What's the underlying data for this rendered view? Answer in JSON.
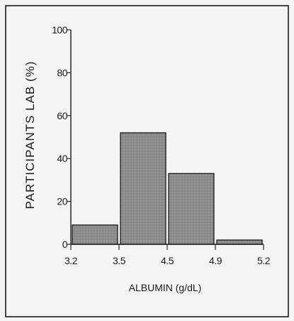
{
  "chart_data": {
    "type": "bar",
    "title": "",
    "xlabel": "ALBUMIN (g/dL)",
    "ylabel": "PARTICIPANTS LAB (%)",
    "bins": [
      {
        "from": 3.2,
        "to": 3.5,
        "value": 9
      },
      {
        "from": 3.5,
        "to": 4.5,
        "value": 52
      },
      {
        "from": 4.5,
        "to": 4.9,
        "value": 33
      },
      {
        "from": 4.9,
        "to": 5.2,
        "value": 2
      }
    ],
    "x_ticks": [
      "3.2",
      "3.5",
      "4.5",
      "4.9",
      "5.2"
    ],
    "y_ticks": [
      "0",
      "20",
      "40",
      "60",
      "80",
      "100"
    ],
    "ylim": [
      0,
      100
    ],
    "grid": false,
    "legend": "none",
    "colors": {
      "bar_fill": "#8e8e8e",
      "ink": "#1a1a1a",
      "background": "#f4f4f2"
    }
  }
}
